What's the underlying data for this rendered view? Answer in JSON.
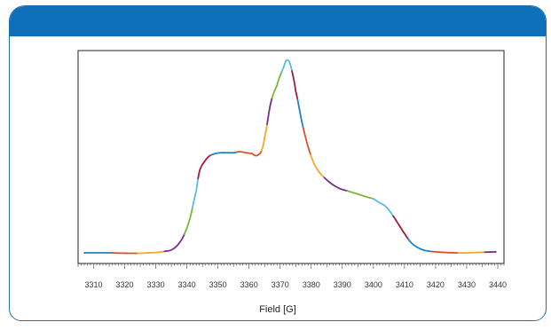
{
  "header": {
    "color": "#0d70b8"
  },
  "chart_data": {
    "type": "line",
    "title": "",
    "xlabel": "Field [G]",
    "ylabel": "",
    "xlim": [
      3305,
      3442
    ],
    "ylim": [
      -0.05,
      1.02
    ],
    "x_ticks": [
      3310,
      3320,
      3330,
      3340,
      3350,
      3360,
      3370,
      3380,
      3390,
      3400,
      3410,
      3420,
      3430,
      3440
    ],
    "grid": false,
    "legend": "none",
    "segment_colors": [
      "#1a85c6",
      "#d9532a",
      "#f0a92a",
      "#7b2d8e",
      "#7ab539",
      "#5bbbe0",
      "#a01c3c"
    ],
    "series": [
      {
        "points": [
          [
            3305,
            0.0
          ],
          [
            3310,
            0.0
          ],
          [
            3315,
            0.0
          ],
          [
            3320,
            -0.002
          ],
          [
            3325,
            -0.002
          ],
          [
            3328,
            0.0
          ],
          [
            3331,
            0.003
          ],
          [
            3333,
            0.008
          ],
          [
            3335,
            0.015
          ],
          [
            3337,
            0.04
          ],
          [
            3339,
            0.09
          ],
          [
            3341,
            0.18
          ],
          [
            3343,
            0.32
          ],
          [
            3344,
            0.42
          ],
          [
            3345,
            0.46
          ],
          [
            3347,
            0.5
          ],
          [
            3349,
            0.515
          ],
          [
            3351,
            0.52
          ],
          [
            3353,
            0.52
          ],
          [
            3355,
            0.52
          ],
          [
            3357,
            0.525
          ],
          [
            3359,
            0.52
          ],
          [
            3361,
            0.515
          ],
          [
            3362,
            0.505
          ],
          [
            3363,
            0.51
          ],
          [
            3364,
            0.53
          ],
          [
            3365,
            0.6
          ],
          [
            3367,
            0.78
          ],
          [
            3369,
            0.87
          ],
          [
            3370,
            0.92
          ],
          [
            3371,
            0.96
          ],
          [
            3372,
            1.0
          ],
          [
            3373,
            0.99
          ],
          [
            3374,
            0.93
          ],
          [
            3375,
            0.84
          ],
          [
            3377,
            0.68
          ],
          [
            3379,
            0.55
          ],
          [
            3381,
            0.46
          ],
          [
            3383,
            0.41
          ],
          [
            3386,
            0.365
          ],
          [
            3389,
            0.335
          ],
          [
            3392,
            0.32
          ],
          [
            3395,
            0.305
          ],
          [
            3398,
            0.29
          ],
          [
            3400,
            0.28
          ],
          [
            3402,
            0.26
          ],
          [
            3404,
            0.24
          ],
          [
            3406,
            0.2
          ],
          [
            3408,
            0.15
          ],
          [
            3410,
            0.1
          ],
          [
            3412,
            0.055
          ],
          [
            3414,
            0.03
          ],
          [
            3416,
            0.015
          ],
          [
            3418,
            0.008
          ],
          [
            3422,
            0.003
          ],
          [
            3426,
            0.0
          ],
          [
            3430,
            0.0
          ],
          [
            3435,
            0.003
          ],
          [
            3440,
            0.005
          ]
        ]
      }
    ]
  }
}
